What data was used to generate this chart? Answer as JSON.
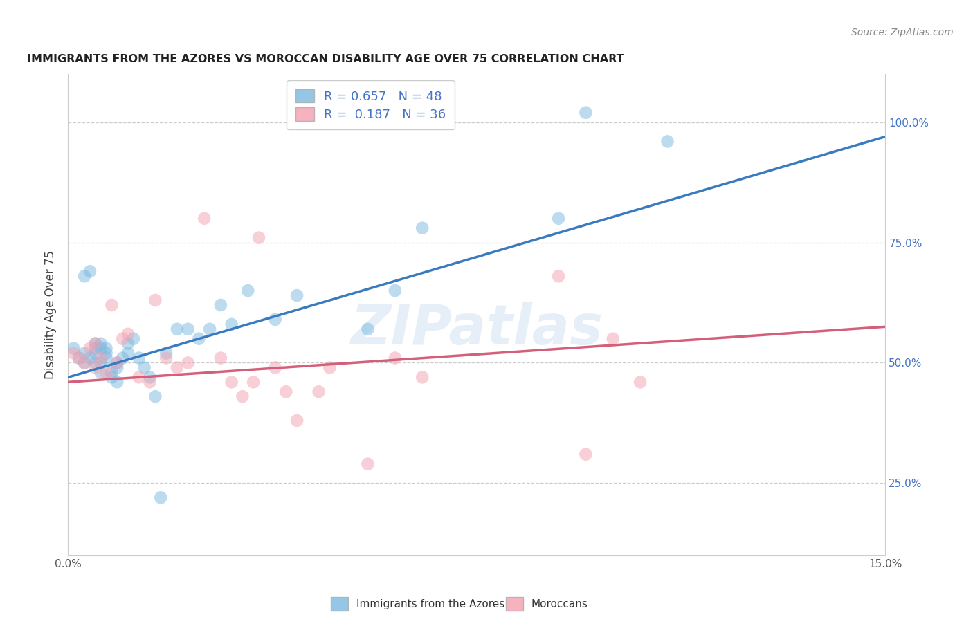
{
  "title": "IMMIGRANTS FROM THE AZORES VS MOROCCAN DISABILITY AGE OVER 75 CORRELATION CHART",
  "source": "Source: ZipAtlas.com",
  "xlabel_left": "Immigrants from the Azores",
  "xlabel_right": "Moroccans",
  "ylabel": "Disability Age Over 75",
  "xmin": 0.0,
  "xmax": 0.15,
  "ymin": 0.1,
  "ymax": 1.1,
  "right_ytick_vals": [
    0.25,
    0.5,
    0.75,
    1.0
  ],
  "right_yticklabels": [
    "25.0%",
    "50.0%",
    "75.0%",
    "100.0%"
  ],
  "xtick_vals": [
    0.0,
    0.03,
    0.06,
    0.09,
    0.12,
    0.15
  ],
  "xticklabels": [
    "0.0%",
    "",
    "",
    "",
    "",
    "15.0%"
  ],
  "blue_R": 0.657,
  "blue_N": 48,
  "pink_R": 0.187,
  "pink_N": 36,
  "blue_scatter_color": "#7ab9e0",
  "blue_line_color": "#3a7bbf",
  "pink_scatter_color": "#f4a0b0",
  "pink_line_color": "#d45f7a",
  "bg_color": "#ffffff",
  "grid_color": "#cccccc",
  "watermark_text": "ZIPatlas",
  "watermark_color": "#c8ddf0",
  "legend_text_color": "#4472c4",
  "title_color": "#222222",
  "source_color": "#888888",
  "blue_line_y0": 0.47,
  "blue_line_y1": 0.97,
  "pink_line_y0": 0.46,
  "pink_line_y1": 0.575,
  "blue_x": [
    0.001,
    0.002,
    0.003,
    0.003,
    0.004,
    0.004,
    0.005,
    0.005,
    0.005,
    0.005,
    0.006,
    0.006,
    0.006,
    0.007,
    0.007,
    0.007,
    0.008,
    0.008,
    0.009,
    0.009,
    0.01,
    0.011,
    0.011,
    0.012,
    0.013,
    0.014,
    0.015,
    0.016,
    0.017,
    0.018,
    0.02,
    0.022,
    0.024,
    0.026,
    0.028,
    0.03,
    0.033,
    0.038,
    0.042,
    0.055,
    0.06,
    0.065,
    0.09,
    0.095,
    0.11,
    0.003,
    0.006,
    0.009
  ],
  "blue_y": [
    0.53,
    0.51,
    0.52,
    0.68,
    0.69,
    0.51,
    0.5,
    0.53,
    0.54,
    0.52,
    0.5,
    0.48,
    0.53,
    0.51,
    0.52,
    0.53,
    0.47,
    0.48,
    0.46,
    0.49,
    0.51,
    0.52,
    0.54,
    0.55,
    0.51,
    0.49,
    0.47,
    0.43,
    0.22,
    0.52,
    0.57,
    0.57,
    0.55,
    0.57,
    0.62,
    0.58,
    0.65,
    0.59,
    0.64,
    0.57,
    0.65,
    0.78,
    0.8,
    1.02,
    0.96,
    0.5,
    0.54,
    0.5
  ],
  "pink_x": [
    0.001,
    0.002,
    0.003,
    0.004,
    0.005,
    0.005,
    0.006,
    0.007,
    0.008,
    0.009,
    0.01,
    0.011,
    0.013,
    0.015,
    0.016,
    0.018,
    0.02,
    0.022,
    0.025,
    0.028,
    0.032,
    0.034,
    0.038,
    0.04,
    0.042,
    0.046,
    0.048,
    0.055,
    0.06,
    0.065,
    0.09,
    0.095,
    0.1,
    0.105,
    0.035,
    0.03
  ],
  "pink_y": [
    0.52,
    0.51,
    0.5,
    0.53,
    0.54,
    0.49,
    0.51,
    0.48,
    0.62,
    0.5,
    0.55,
    0.56,
    0.47,
    0.46,
    0.63,
    0.51,
    0.49,
    0.5,
    0.8,
    0.51,
    0.43,
    0.46,
    0.49,
    0.44,
    0.38,
    0.44,
    0.49,
    0.29,
    0.51,
    0.47,
    0.68,
    0.31,
    0.55,
    0.46,
    0.76,
    0.46
  ]
}
